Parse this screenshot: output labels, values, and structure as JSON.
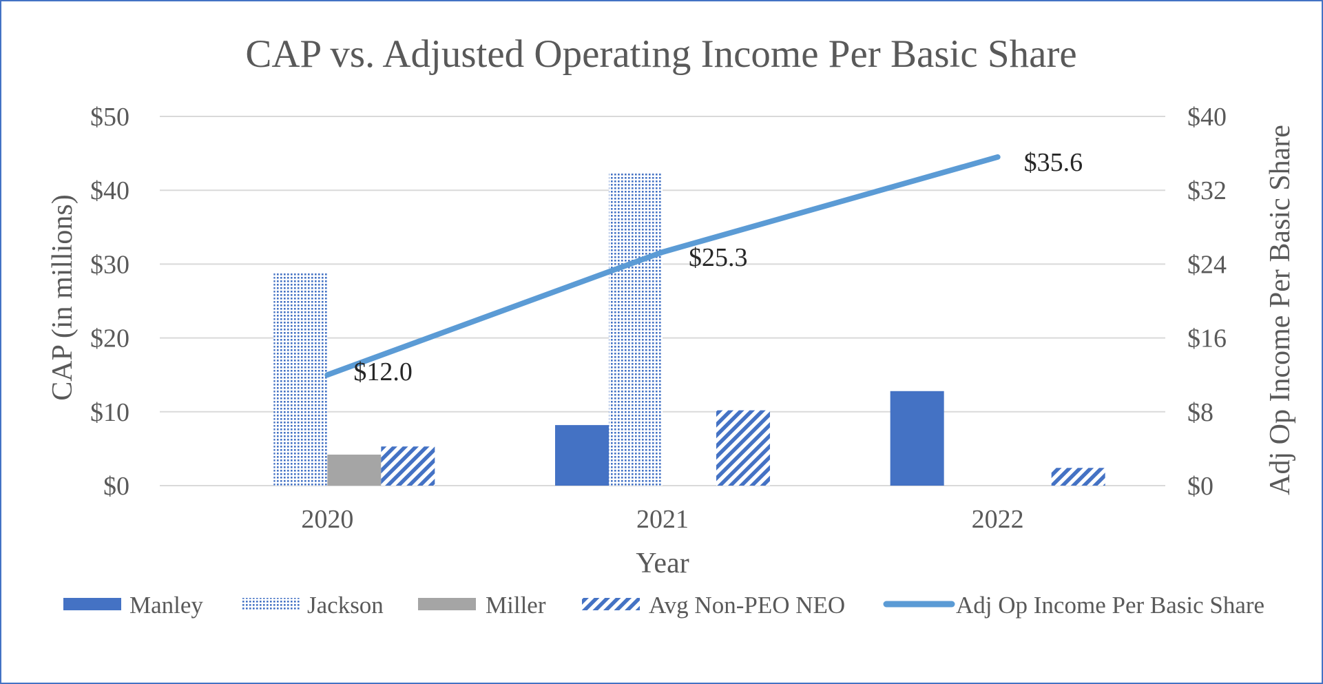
{
  "chart_data": {
    "type": "bar",
    "title": "CAP vs. Adjusted Operating Income Per Basic Share",
    "xlabel": "Year",
    "ylabel": "CAP (in millions)",
    "y2label": "Adj Op Income Per Basic Share",
    "categories": [
      "2020",
      "2021",
      "2022"
    ],
    "ylim": [
      0,
      50
    ],
    "y2lim": [
      0,
      40
    ],
    "yticks": [
      "$0",
      "$10",
      "$20",
      "$30",
      "$40",
      "$50"
    ],
    "y2ticks": [
      "$0",
      "$8",
      "$16",
      "$24",
      "$32",
      "$40"
    ],
    "grid": true,
    "legend_position": "bottom",
    "series": [
      {
        "name": "Manley",
        "type": "bar",
        "pattern": "solid",
        "color": "#4472c4",
        "values": [
          0,
          8.2,
          12.8
        ]
      },
      {
        "name": "Jackson",
        "type": "bar",
        "pattern": "dotted",
        "color": "#4472c4",
        "values": [
          28.8,
          42.3,
          0
        ]
      },
      {
        "name": "Miller",
        "type": "bar",
        "pattern": "solid",
        "color": "#a5a5a5",
        "values": [
          4.2,
          0,
          0
        ]
      },
      {
        "name": "Avg Non-PEO NEO",
        "type": "bar",
        "pattern": "diagonal",
        "color": "#4472c4",
        "values": [
          5.3,
          10.2,
          2.4
        ]
      },
      {
        "name": "Adj Op Income Per Basic Share",
        "type": "line",
        "axis": "right",
        "color": "#5b9bd5",
        "values": [
          12.0,
          25.3,
          35.6
        ],
        "labels": [
          "$12.0",
          "$25.3",
          "$35.6"
        ]
      }
    ]
  }
}
